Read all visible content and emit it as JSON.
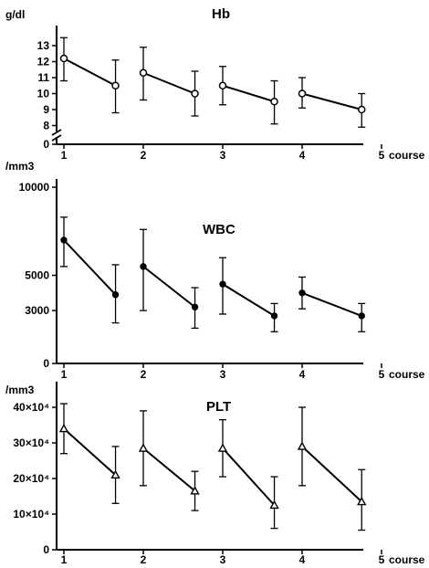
{
  "chart_data": [
    {
      "type": "line",
      "title": "Hb",
      "ylabel": "g/dl",
      "xlabel": "course",
      "x_ticks": [
        "1",
        "2",
        "3",
        "4",
        "5"
      ],
      "y_ticks": [
        "0",
        "8",
        "9",
        "10",
        "11",
        "12",
        "13"
      ],
      "y_break": true,
      "marker": "open-circle",
      "series": [
        {
          "x": [
            1,
            1.65
          ],
          "y": [
            12.2,
            10.5
          ],
          "err_hi": [
            13.5,
            12.1
          ],
          "err_lo": [
            10.8,
            8.8
          ]
        },
        {
          "x": [
            2,
            2.65
          ],
          "y": [
            11.3,
            10.0
          ],
          "err_hi": [
            12.9,
            11.4
          ],
          "err_lo": [
            9.6,
            8.6
          ]
        },
        {
          "x": [
            3,
            3.65
          ],
          "y": [
            10.5,
            9.5
          ],
          "err_hi": [
            11.7,
            10.8
          ],
          "err_lo": [
            9.3,
            8.1
          ]
        },
        {
          "x": [
            4,
            4.75
          ],
          "y": [
            10.0,
            9.0
          ],
          "err_hi": [
            11.0,
            10.0
          ],
          "err_lo": [
            9.1,
            7.9
          ]
        }
      ]
    },
    {
      "type": "line",
      "title": "WBC",
      "ylabel": "/mm3",
      "xlabel": "course",
      "x_ticks": [
        "1",
        "2",
        "3",
        "4",
        "5"
      ],
      "y_ticks": [
        "0",
        "3000",
        "5000",
        "10000"
      ],
      "ylim": [
        0,
        10000
      ],
      "marker": "filled-circle",
      "series": [
        {
          "x": [
            1,
            1.65
          ],
          "y": [
            7000,
            3900
          ],
          "err_hi": [
            8300,
            5600
          ],
          "err_lo": [
            5500,
            2300
          ]
        },
        {
          "x": [
            2,
            2.65
          ],
          "y": [
            5500,
            3200
          ],
          "err_hi": [
            7600,
            4300
          ],
          "err_lo": [
            3000,
            2000
          ]
        },
        {
          "x": [
            3,
            3.65
          ],
          "y": [
            4500,
            2700
          ],
          "err_hi": [
            6000,
            3400
          ],
          "err_lo": [
            2800,
            1800
          ]
        },
        {
          "x": [
            4,
            4.75
          ],
          "y": [
            4000,
            2700
          ],
          "err_hi": [
            4900,
            3400
          ],
          "err_lo": [
            3100,
            1800
          ]
        }
      ]
    },
    {
      "type": "line",
      "title": "PLT",
      "ylabel": "/mm3",
      "xlabel": "course",
      "x_ticks": [
        "1",
        "2",
        "3",
        "4",
        "5"
      ],
      "y_ticks": [
        "0",
        "10×10⁴",
        "20×10⁴",
        "30×10⁴",
        "40×10⁴"
      ],
      "ylim": [
        0,
        400000
      ],
      "marker": "open-triangle",
      "series": [
        {
          "x": [
            1,
            1.65
          ],
          "y": [
            340000,
            210000
          ],
          "err_hi": [
            410000,
            290000
          ],
          "err_lo": [
            270000,
            130000
          ]
        },
        {
          "x": [
            2,
            2.65
          ],
          "y": [
            285000,
            165000
          ],
          "err_hi": [
            390000,
            220000
          ],
          "err_lo": [
            180000,
            110000
          ]
        },
        {
          "x": [
            3,
            3.65
          ],
          "y": [
            285000,
            125000
          ],
          "err_hi": [
            365000,
            205000
          ],
          "err_lo": [
            205000,
            60000
          ]
        },
        {
          "x": [
            4,
            4.75
          ],
          "y": [
            290000,
            135000
          ],
          "err_hi": [
            400000,
            225000
          ],
          "err_lo": [
            180000,
            55000
          ]
        }
      ]
    }
  ]
}
